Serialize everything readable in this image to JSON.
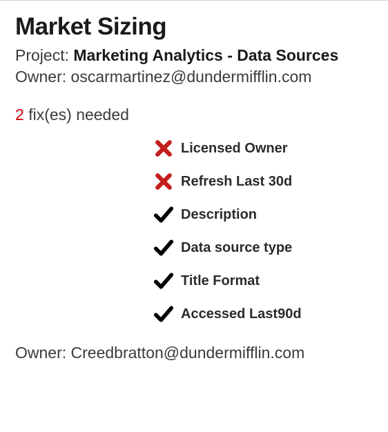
{
  "title": "Market Sizing",
  "project": {
    "label": "Project",
    "value": "Marketing Analytics - Data Sources"
  },
  "owner": {
    "label": "Owner",
    "value": "oscarmartinez@dundermifflin.com"
  },
  "fixes": {
    "count": "2",
    "text": "fix(es) needed"
  },
  "checks": [
    {
      "status": "fail",
      "label": "Licensed Owner"
    },
    {
      "status": "fail",
      "label": "Refresh Last 30d"
    },
    {
      "status": "pass",
      "label": "Description"
    },
    {
      "status": "pass",
      "label": "Data source type"
    },
    {
      "status": "pass",
      "label": "Title Format"
    },
    {
      "status": "pass",
      "label": "Accessed Last90d"
    }
  ],
  "footer_owner": {
    "label": "Owner",
    "value": "Creedbratton@dundermifflin.com"
  },
  "colors": {
    "fail": "#c41e1e",
    "pass": "#000000",
    "fixes_count": "#d40000"
  }
}
